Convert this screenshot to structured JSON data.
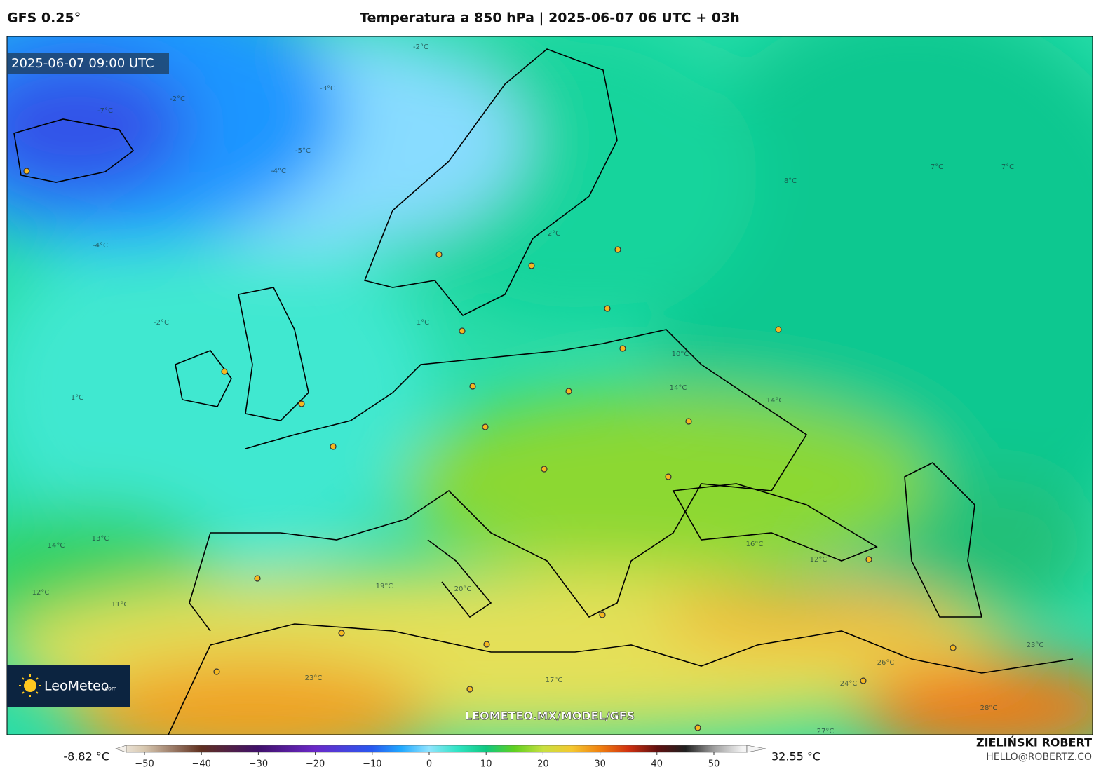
{
  "header": {
    "model": "GFS 0.25°",
    "title": "Temperatura a 850 hPa | 2025-06-07 06 UTC + 03h"
  },
  "map": {
    "timestamp": "2025-06-07 09:00 UTC",
    "watermark": "LEOMETEO.MX/MODEL/GFS",
    "logo": {
      "name": "LeoMeteo",
      "suffix": ".com"
    },
    "contour_labels": [
      "-2°C",
      "-2°C",
      "-3°C",
      "-7°C",
      "-5°C",
      "-4°C",
      "-4°C",
      "-2°C",
      "1°C",
      "1°C",
      "2°C",
      "7°C",
      "7°C",
      "8°C",
      "10°C",
      "14°C",
      "14°C",
      "13°C",
      "14°C",
      "12°C",
      "11°C",
      "19°C",
      "16°C",
      "12°C",
      "23°C",
      "26°C",
      "23°C",
      "27°C",
      "28°C",
      "17°C",
      "20°C",
      "24°C"
    ]
  },
  "colorbar": {
    "min_label": "-8.82 °C",
    "max_label": "32.55 °C",
    "lim": [
      -55,
      55
    ],
    "ticks": [
      {
        "value": -50,
        "label": "−50"
      },
      {
        "value": -40,
        "label": "−40"
      },
      {
        "value": -30,
        "label": "−30"
      },
      {
        "value": -20,
        "label": "−20"
      },
      {
        "value": -10,
        "label": "−10"
      },
      0,
      10,
      20,
      30,
      40,
      50
    ]
  },
  "credits": {
    "author": "ZIELIŃSKI ROBERT",
    "email": "HELLO@ROBERTZ.CO"
  }
}
